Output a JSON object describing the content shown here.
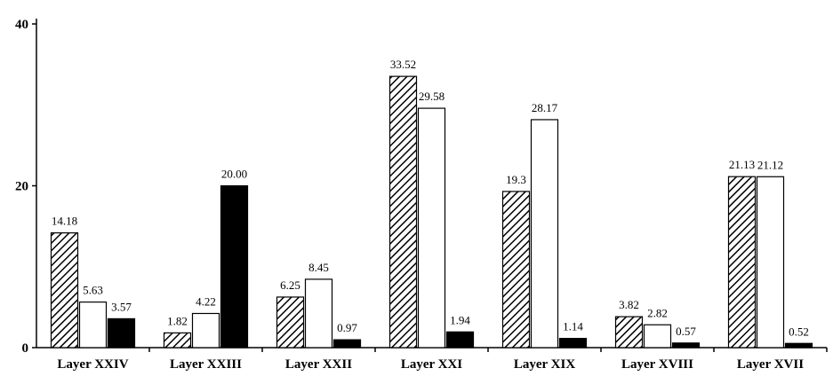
{
  "chart_data": {
    "type": "bar",
    "title": "",
    "xlabel": "",
    "ylabel": "",
    "ylim": [
      0,
      40
    ],
    "yticks": [
      0,
      20,
      40
    ],
    "grid": false,
    "legend": "none",
    "categories": [
      "Layer XXIV",
      "Layer XXIII",
      "Layer XXII",
      "Layer XXI",
      "Layer XIX",
      "Layer XVIII",
      "Layer XVII"
    ],
    "series": [
      {
        "fill": "hatched",
        "values": [
          14.18,
          1.82,
          6.25,
          33.52,
          19.3,
          3.82,
          21.13
        ],
        "labels": [
          "14.18",
          "1.82",
          "6.25",
          "33.52",
          "19.3",
          "3.82",
          "21.13"
        ]
      },
      {
        "fill": "white",
        "values": [
          5.63,
          4.22,
          8.45,
          29.58,
          28.17,
          2.82,
          21.12
        ],
        "labels": [
          "5.63",
          "4.22",
          "8.45",
          "29.58",
          "28.17",
          "2.82",
          "21.12"
        ]
      },
      {
        "fill": "black",
        "values": [
          3.57,
          20.0,
          0.97,
          1.94,
          1.14,
          0.57,
          0.52
        ],
        "labels": [
          "3.57",
          "20.00",
          "0.97",
          "1.94",
          "1.14",
          "0.57",
          "0.52"
        ]
      }
    ]
  }
}
